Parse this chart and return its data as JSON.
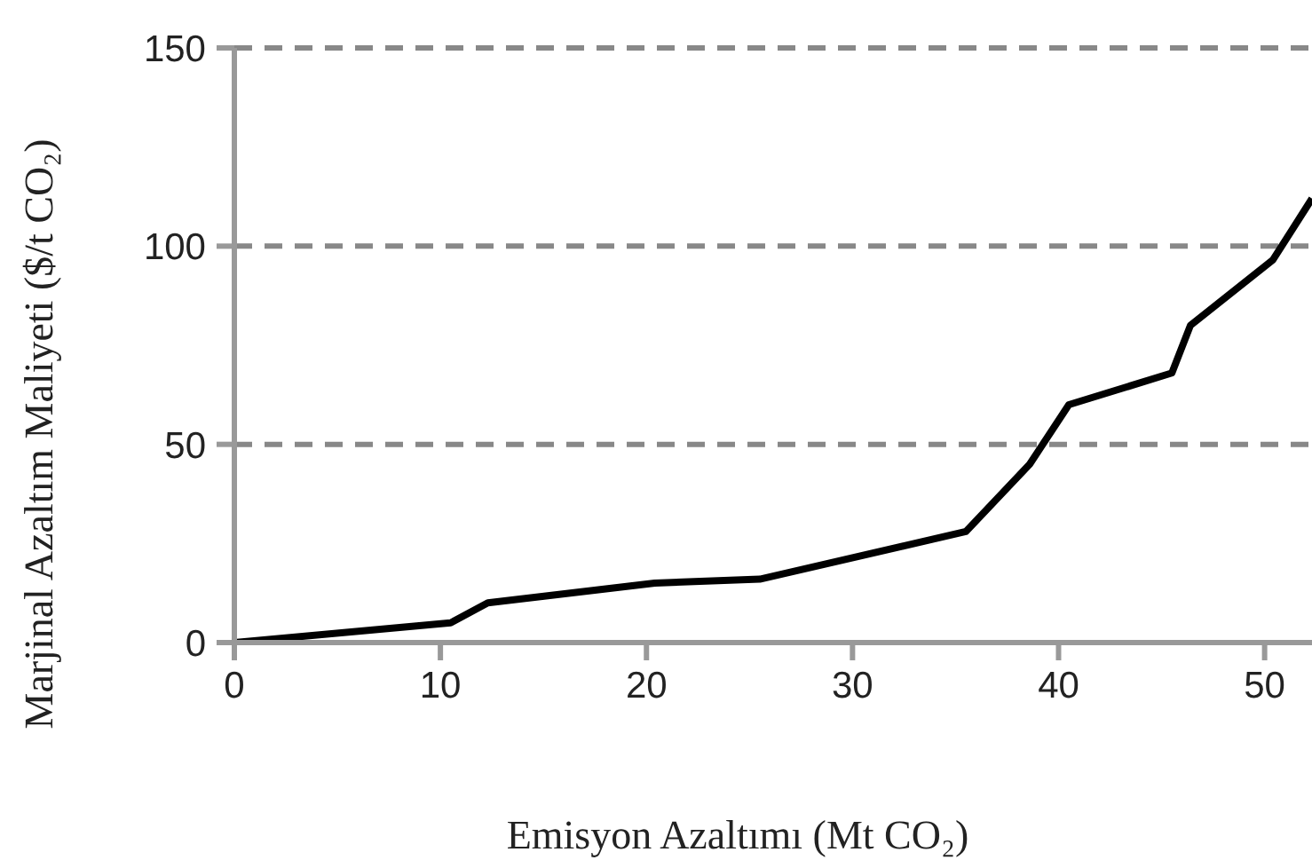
{
  "chart_data": {
    "type": "line",
    "xlabel": "Emisyon Azaltımı (Mt CO₂)",
    "ylabel": "Marjinal Azaltım Maliyeti ($/t CO₂)",
    "x": [
      0,
      10.5,
      12.3,
      20.4,
      25.5,
      35.5,
      38.6,
      40.5,
      45.5,
      46.4,
      50.4,
      52.3
    ],
    "series": [
      {
        "color": "#000000",
        "values": [
          0,
          5,
          10,
          15,
          16,
          28,
          45,
          60,
          68,
          80,
          96.5,
          112
        ]
      }
    ],
    "xlim": [
      0,
      52.3
    ],
    "xticks": [
      0,
      10,
      20,
      30,
      40,
      50
    ],
    "ylim": [
      0,
      150
    ],
    "yticks": [
      0,
      50,
      100,
      150
    ],
    "grid": "y",
    "line_style": "solid"
  }
}
